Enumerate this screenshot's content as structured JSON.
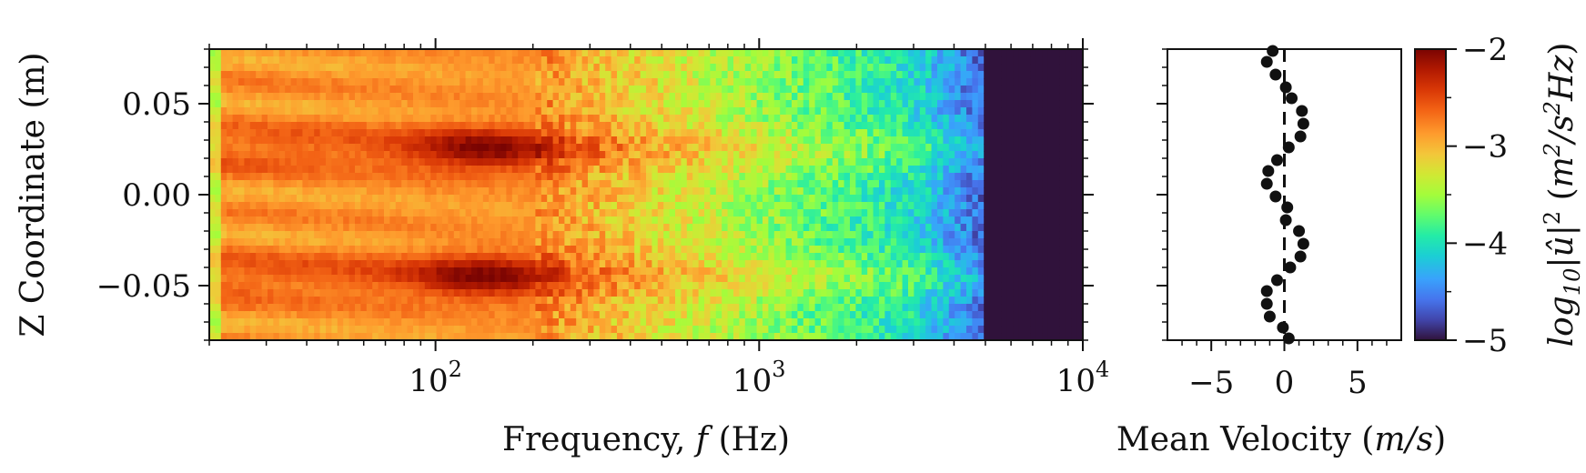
{
  "chart_data": [
    {
      "type": "heatmap",
      "xlabel": "Frequency, ",
      "xlabel_italic": "f",
      "xlabel_unit": " (Hz)",
      "ylabel": "Z Coordinate (m)",
      "x_scale": "log",
      "xlim": [
        20,
        10000
      ],
      "ylim": [
        -0.08,
        0.08
      ],
      "x_ticks": [
        {
          "value": 100,
          "base": "10",
          "exp": "2"
        },
        {
          "value": 1000,
          "base": "10",
          "exp": "3"
        },
        {
          "value": 10000,
          "base": "10",
          "exp": "4"
        }
      ],
      "y_ticks": [
        {
          "value": 0.05,
          "label": "0.05"
        },
        {
          "value": 0.0,
          "label": "0.00"
        },
        {
          "value": -0.05,
          "label": "−0.05"
        }
      ],
      "colormap": "turbo",
      "vmin": -5,
      "vmax": -2,
      "hotspot_z": [
        0.025,
        -0.045
      ],
      "hotspot_f_range_hz": [
        100,
        200
      ],
      "cutoff_f_hz": 5000,
      "grid": false
    },
    {
      "type": "scatter",
      "xlabel": "Mean Velocity (",
      "xlabel_italic": "m/s",
      "xlabel_close": ")",
      "xlim": [
        -8,
        8
      ],
      "ylim": [
        -0.08,
        0.08
      ],
      "x_ticks": [
        {
          "value": -5,
          "label": "−5"
        },
        {
          "value": 0,
          "label": "0"
        },
        {
          "value": 5,
          "label": "5"
        }
      ],
      "reference_line_x": 0,
      "points": [
        {
          "x": -0.8,
          "y": 0.079
        },
        {
          "x": -1.2,
          "y": 0.073
        },
        {
          "x": -0.6,
          "y": 0.066
        },
        {
          "x": 0.1,
          "y": 0.059
        },
        {
          "x": 0.5,
          "y": 0.053
        },
        {
          "x": 1.2,
          "y": 0.046
        },
        {
          "x": 1.3,
          "y": 0.039
        },
        {
          "x": 1.1,
          "y": 0.032
        },
        {
          "x": 0.3,
          "y": 0.026
        },
        {
          "x": -0.5,
          "y": 0.019
        },
        {
          "x": -1.1,
          "y": 0.013
        },
        {
          "x": -1.2,
          "y": 0.006
        },
        {
          "x": -0.6,
          "y": -0.001
        },
        {
          "x": 0.2,
          "y": -0.007
        },
        {
          "x": 0.1,
          "y": -0.014
        },
        {
          "x": 1.0,
          "y": -0.02
        },
        {
          "x": 1.3,
          "y": -0.027
        },
        {
          "x": 1.1,
          "y": -0.034
        },
        {
          "x": 0.4,
          "y": -0.04
        },
        {
          "x": -0.5,
          "y": -0.047
        },
        {
          "x": -1.2,
          "y": -0.053
        },
        {
          "x": -1.2,
          "y": -0.06
        },
        {
          "x": -1.0,
          "y": -0.067
        },
        {
          "x": -0.1,
          "y": -0.073
        },
        {
          "x": 0.3,
          "y": -0.079
        }
      ]
    }
  ],
  "colorbar": {
    "vmin": -5,
    "vmax": -2,
    "ticks": [
      {
        "value": -2,
        "label": "−2"
      },
      {
        "value": -3,
        "label": "−3"
      },
      {
        "value": -4,
        "label": "−4"
      },
      {
        "value": -5,
        "label": "−5"
      }
    ],
    "label_pre": "log",
    "label_sub": "10",
    "label_mid": "|û|",
    "label_sup": "2",
    "label_unit_open": " (",
    "label_unit_m": "m",
    "label_unit_m_sup": "2",
    "label_unit_s": "/s",
    "label_unit_s_sup": "2",
    "label_unit_hz": "Hz",
    "label_unit_close": ")"
  }
}
